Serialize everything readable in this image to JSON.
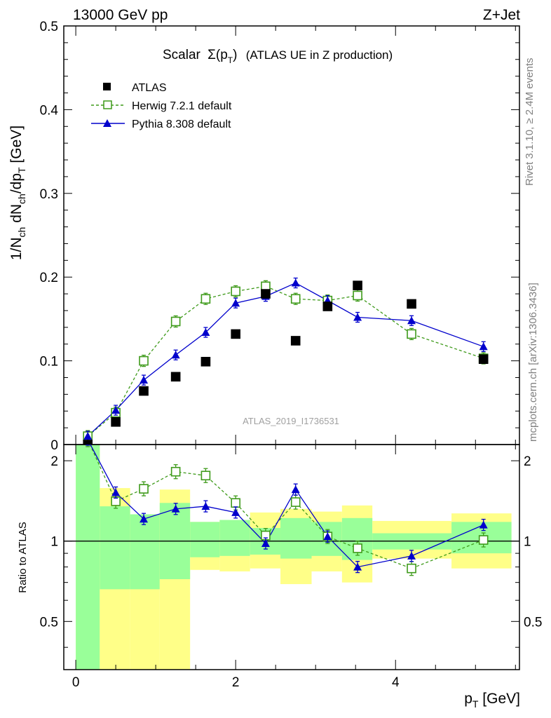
{
  "header": {
    "energy_label": "13000 GeV pp",
    "process_label": "Z+Jet"
  },
  "title": {
    "prefix": "Scalar",
    "symbol": "Σ(p",
    "sub": "T",
    "suffix": ")",
    "description": "(ATLAS UE in Z production)"
  },
  "side_labels": {
    "rivet": "Rivet 3.1.10, ≥ 2.4M events",
    "mcplots": "mcplots.cern.ch [arXiv:1306.3436]"
  },
  "watermark": "ATLAS_2019_I1736531",
  "colors": {
    "data": "#000000",
    "herwig": "#3e9a1a",
    "pythia": "#0000cc",
    "band_inner": "#99ff99",
    "band_outer": "#ffff88"
  },
  "chart_data": [
    {
      "type": "scatter",
      "panel": "main",
      "ylabel": "1/N_ch dN_ch/dp_T [GeV]",
      "ylim": [
        0,
        0.5
      ],
      "xlim": [
        -0.15,
        5.55
      ],
      "yticks": [
        "0",
        "0.1",
        "0.2",
        "0.3",
        "0.4",
        "0.5"
      ],
      "legend_position": "top-left",
      "series": [
        {
          "name": "ATLAS",
          "style": "black squares",
          "points": [
            [
              0.15,
              0.0
            ],
            [
              0.5,
              0.027
            ],
            [
              0.85,
              0.064
            ],
            [
              1.25,
              0.081
            ],
            [
              1.625,
              0.099
            ],
            [
              2.0,
              0.132
            ],
            [
              2.375,
              0.18
            ],
            [
              2.75,
              0.124
            ],
            [
              3.15,
              0.165
            ],
            [
              3.525,
              0.19
            ],
            [
              4.2,
              0.168
            ],
            [
              5.1,
              0.102
            ]
          ]
        },
        {
          "name": "Herwig 7.2.1 default",
          "style": "green open squares, dashed line",
          "points": [
            [
              0.15,
              0.01
            ],
            [
              0.5,
              0.038
            ],
            [
              0.85,
              0.1
            ],
            [
              1.25,
              0.147
            ],
            [
              1.625,
              0.174
            ],
            [
              2.0,
              0.183
            ],
            [
              2.375,
              0.189
            ],
            [
              2.75,
              0.174
            ],
            [
              3.15,
              0.172
            ],
            [
              3.525,
              0.178
            ],
            [
              4.2,
              0.132
            ],
            [
              5.1,
              0.103
            ]
          ]
        },
        {
          "name": "Pythia 8.308 default",
          "style": "blue triangles, solid line",
          "points": [
            [
              0.15,
              0.01
            ],
            [
              0.5,
              0.041
            ],
            [
              0.85,
              0.077
            ],
            [
              1.25,
              0.107
            ],
            [
              1.625,
              0.134
            ],
            [
              2.0,
              0.169
            ],
            [
              2.375,
              0.177
            ],
            [
              2.75,
              0.193
            ],
            [
              3.15,
              0.172
            ],
            [
              3.525,
              0.152
            ],
            [
              4.2,
              0.148
            ],
            [
              5.1,
              0.117
            ]
          ]
        }
      ]
    },
    {
      "type": "line",
      "panel": "ratio",
      "ylabel": "Ratio to ATLAS",
      "xlabel": "p_T [GeV]",
      "xlim": [
        -0.15,
        5.55
      ],
      "ylim": [
        0.33,
        2.3
      ],
      "ytick_labels": [
        "0.5",
        "1",
        "2"
      ],
      "ytick_values": [
        0.5,
        1,
        2
      ],
      "xtick_labels": [
        "0",
        "2",
        "4"
      ],
      "xtick_values": [
        0,
        2,
        4
      ],
      "bands": [
        {
          "x0": 0.0,
          "x1": 0.3,
          "inner": [
            0.33,
            2.3
          ],
          "outer": [
            0.33,
            2.3
          ]
        },
        {
          "x0": 0.3,
          "x1": 0.68,
          "inner": [
            0.66,
            1.35
          ],
          "outer": [
            0.33,
            1.58
          ]
        },
        {
          "x0": 0.68,
          "x1": 1.05,
          "inner": [
            0.66,
            1.26
          ],
          "outer": [
            0.33,
            1.26
          ]
        },
        {
          "x0": 1.05,
          "x1": 1.43,
          "inner": [
            0.72,
            1.39
          ],
          "outer": [
            0.33,
            1.56
          ]
        },
        {
          "x0": 1.43,
          "x1": 1.8,
          "inner": [
            0.87,
            1.18
          ],
          "outer": [
            0.78,
            1.18
          ]
        },
        {
          "x0": 1.8,
          "x1": 2.18,
          "inner": [
            0.88,
            1.2
          ],
          "outer": [
            0.77,
            1.2
          ]
        },
        {
          "x0": 2.18,
          "x1": 2.56,
          "inner": [
            0.89,
            1.12
          ],
          "outer": [
            0.79,
            1.28
          ]
        },
        {
          "x0": 2.56,
          "x1": 2.95,
          "inner": [
            0.86,
            1.22
          ],
          "outer": [
            0.69,
            1.32
          ]
        },
        {
          "x0": 2.95,
          "x1": 3.33,
          "inner": [
            0.88,
            1.18
          ],
          "outer": [
            0.77,
            1.29
          ]
        },
        {
          "x0": 3.33,
          "x1": 3.71,
          "inner": [
            0.85,
            1.22
          ],
          "outer": [
            0.7,
            1.36
          ]
        },
        {
          "x0": 3.71,
          "x1": 4.7,
          "inner": [
            0.93,
            1.07
          ],
          "outer": [
            0.86,
            1.19
          ]
        },
        {
          "x0": 4.7,
          "x1": 5.45,
          "inner": [
            0.9,
            1.18
          ],
          "outer": [
            0.79,
            1.27
          ]
        }
      ],
      "series": [
        {
          "name": "Herwig 7.2.1 default",
          "points": [
            [
              0.15,
              2.4
            ],
            [
              0.5,
              1.41
            ],
            [
              0.85,
              1.57
            ],
            [
              1.25,
              1.82
            ],
            [
              1.625,
              1.76
            ],
            [
              2.0,
              1.39
            ],
            [
              2.375,
              1.05
            ],
            [
              2.75,
              1.4
            ],
            [
              3.15,
              1.04
            ],
            [
              3.525,
              0.94
            ],
            [
              4.2,
              0.79
            ],
            [
              5.1,
              1.01
            ]
          ]
        },
        {
          "name": "Pythia 8.308 default",
          "points": [
            [
              0.15,
              2.4
            ],
            [
              0.5,
              1.52
            ],
            [
              0.85,
              1.21
            ],
            [
              1.25,
              1.32
            ],
            [
              1.625,
              1.35
            ],
            [
              2.0,
              1.28
            ],
            [
              2.375,
              0.98
            ],
            [
              2.75,
              1.56
            ],
            [
              3.15,
              1.04
            ],
            [
              3.525,
              0.8
            ],
            [
              4.2,
              0.88
            ],
            [
              5.1,
              1.15
            ]
          ]
        }
      ]
    }
  ]
}
